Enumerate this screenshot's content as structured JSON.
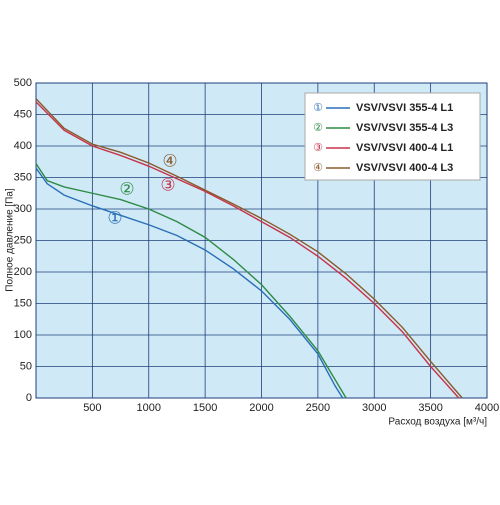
{
  "chart_data": {
    "type": "line",
    "x_label": "Расход воздуха [м³/ч]",
    "y_label": "Полное давление [Па]",
    "xlim": [
      0,
      4000
    ],
    "ylim": [
      0,
      500
    ],
    "xticks": [
      500,
      1000,
      1500,
      2000,
      2500,
      3000,
      3500,
      4000
    ],
    "yticks": [
      0,
      50,
      100,
      150,
      200,
      250,
      300,
      350,
      400,
      450,
      500
    ],
    "grid": true,
    "legend": "top-right",
    "series": [
      {
        "name": "VSV/VSVI 355-4 L1",
        "marker_label": "①",
        "color": "#2a6fb8",
        "x": [
          0,
          100,
          250,
          500,
          750,
          1000,
          1250,
          1500,
          1750,
          2000,
          2250,
          2500,
          2650,
          2720
        ],
        "values": [
          365,
          340,
          322,
          305,
          290,
          275,
          258,
          235,
          205,
          170,
          125,
          70,
          20,
          0
        ]
      },
      {
        "name": "VSV/VSVI 355-4 L3",
        "marker_label": "②",
        "color": "#2e8b45",
        "x": [
          0,
          100,
          250,
          500,
          750,
          1000,
          1250,
          1500,
          1750,
          2000,
          2250,
          2500,
          2650,
          2750
        ],
        "values": [
          372,
          345,
          335,
          325,
          315,
          300,
          280,
          255,
          220,
          180,
          130,
          75,
          30,
          0
        ]
      },
      {
        "name": "VSV/VSVI 400-4 L1",
        "marker_label": "③",
        "color": "#c8324a",
        "x": [
          0,
          250,
          500,
          750,
          1000,
          1250,
          1500,
          1750,
          2000,
          2250,
          2500,
          2750,
          3000,
          3250,
          3500,
          3750
        ],
        "values": [
          470,
          425,
          400,
          385,
          368,
          348,
          328,
          305,
          280,
          255,
          225,
          190,
          150,
          105,
          50,
          0
        ]
      },
      {
        "name": "VSV/VSVI 400-4 L3",
        "marker_label": "④",
        "color": "#8a5a2a",
        "x": [
          0,
          250,
          500,
          750,
          1000,
          1250,
          1500,
          1750,
          2000,
          2250,
          2500,
          2750,
          3000,
          3250,
          3500,
          3780
        ],
        "values": [
          475,
          428,
          403,
          390,
          373,
          352,
          330,
          308,
          285,
          260,
          232,
          197,
          157,
          112,
          58,
          0
        ]
      }
    ]
  }
}
